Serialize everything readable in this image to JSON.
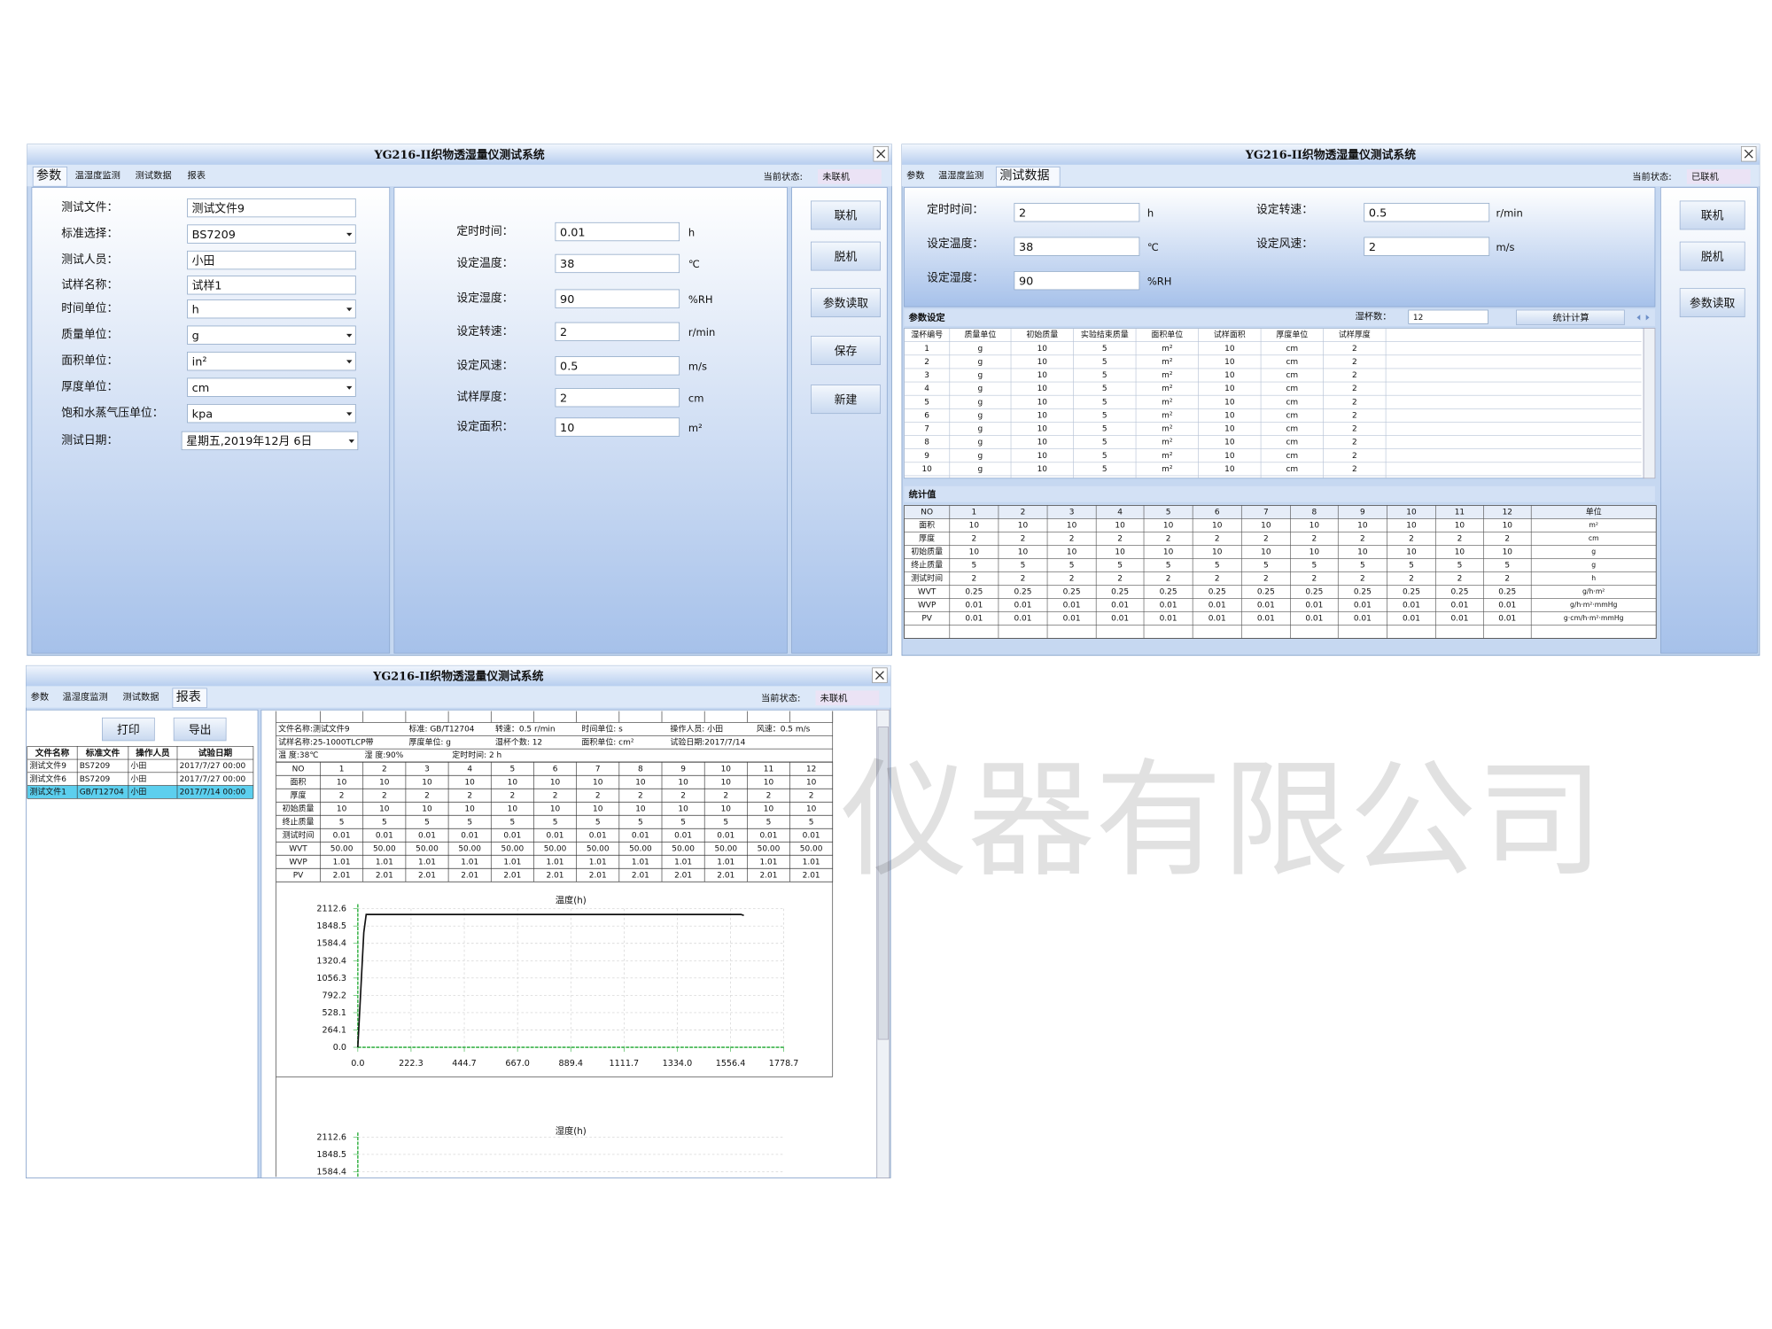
{
  "watermark": "仪器有限公司",
  "windows": [
    {
      "title": "YG216-II织物透湿量仪测试系统",
      "tabs": [
        "参数",
        "温湿度监测",
        "测试数据",
        "报表"
      ],
      "active_tab": 0,
      "status_label": "当前状态:",
      "status": "未联机",
      "form": [
        {
          "label": "测试文件：",
          "value": "测试文件9",
          "dropdown": false
        },
        {
          "label": "标准选择：",
          "value": "BS7209",
          "dropdown": true
        },
        {
          "label": "测试人员：",
          "value": "小田",
          "dropdown": false
        },
        {
          "label": "试样名称：",
          "value": "试样1",
          "dropdown": false
        },
        {
          "label": "时间单位：",
          "value": "h",
          "dropdown": true
        },
        {
          "label": "质量单位：",
          "value": "g",
          "dropdown": true
        },
        {
          "label": "面积单位：",
          "value": "in²",
          "dropdown": true
        },
        {
          "label": "厚度单位：",
          "value": "cm",
          "dropdown": true
        },
        {
          "label": "饱和水蒸气压单位：",
          "value": "kpa",
          "dropdown": true
        },
        {
          "label": "测试日期：",
          "value": "星期五,2019年12月  6日",
          "dropdown": true
        }
      ],
      "settings": [
        {
          "label": "定时时间：",
          "value": "0.01",
          "unit": "h"
        },
        {
          "label": "设定温度：",
          "value": "38",
          "unit": "℃"
        },
        {
          "label": "设定湿度：",
          "value": "90",
          "unit": "%RH"
        },
        {
          "label": "设定转速：",
          "value": "2",
          "unit": "r/min"
        },
        {
          "label": "设定风速：",
          "value": "0.5",
          "unit": "m/s"
        },
        {
          "label": "试样厚度：",
          "value": "2",
          "unit": "cm"
        },
        {
          "label": "设定面积：",
          "value": "10",
          "unit": "m²"
        }
      ],
      "buttons": [
        "联机",
        "脱机",
        "参数读取",
        "保存",
        "新建"
      ]
    },
    {
      "title": "YG216-II织物透湿量仪测试系统",
      "tabs": [
        "参数",
        "温湿度监测",
        "测试数据"
      ],
      "active_tab": 2,
      "status_label": "当前状态:",
      "status": "已联机",
      "settings": [
        {
          "label": "定时时间：",
          "value": "2",
          "unit": "h"
        },
        {
          "label": "设定转速：",
          "value": "0.5",
          "unit": "r/min"
        },
        {
          "label": "设定温度：",
          "value": "38",
          "unit": "℃"
        },
        {
          "label": "设定风速：",
          "value": "2",
          "unit": "m/s"
        },
        {
          "label": "设定湿度：",
          "value": "90",
          "unit": "%RH"
        }
      ],
      "buttons": [
        "联机",
        "脱机",
        "参数读取"
      ],
      "param_section": {
        "title": "参数设定",
        "cups_label": "湿杯数：",
        "cups": "12",
        "calc_button": "统计计算",
        "columns": [
          "湿杯编号",
          "质量单位",
          "初始质量",
          "实验结束质量",
          "面积单位",
          "试样面积",
          "厚度单位",
          "试样厚度"
        ],
        "rows": [
          [
            1,
            "g",
            10,
            5,
            "m²",
            10,
            "cm",
            2
          ],
          [
            2,
            "g",
            10,
            5,
            "m²",
            10,
            "cm",
            2
          ],
          [
            3,
            "g",
            10,
            5,
            "m²",
            10,
            "cm",
            2
          ],
          [
            4,
            "g",
            10,
            5,
            "m²",
            10,
            "cm",
            2
          ],
          [
            5,
            "g",
            10,
            5,
            "m²",
            10,
            "cm",
            2
          ],
          [
            6,
            "g",
            10,
            5,
            "m²",
            10,
            "cm",
            2
          ],
          [
            7,
            "g",
            10,
            5,
            "m²",
            10,
            "cm",
            2
          ],
          [
            8,
            "g",
            10,
            5,
            "m²",
            10,
            "cm",
            2
          ],
          [
            9,
            "g",
            10,
            5,
            "m²",
            10,
            "cm",
            2
          ],
          [
            10,
            "g",
            10,
            5,
            "m²",
            10,
            "cm",
            2
          ]
        ]
      },
      "stats_section": {
        "title": "统计值",
        "columns": [
          "NO",
          1,
          2,
          3,
          4,
          5,
          6,
          7,
          8,
          9,
          10,
          11,
          12,
          "单位"
        ],
        "rows": [
          [
            "面积",
            10,
            10,
            10,
            10,
            10,
            10,
            10,
            10,
            10,
            10,
            10,
            10,
            "m²"
          ],
          [
            "厚度",
            2,
            2,
            2,
            2,
            2,
            2,
            2,
            2,
            2,
            2,
            2,
            2,
            "cm"
          ],
          [
            "初始质量",
            10,
            10,
            10,
            10,
            10,
            10,
            10,
            10,
            10,
            10,
            10,
            10,
            "g"
          ],
          [
            "终止质量",
            5,
            5,
            5,
            5,
            5,
            5,
            5,
            5,
            5,
            5,
            5,
            5,
            "g"
          ],
          [
            "测试时间",
            2,
            2,
            2,
            2,
            2,
            2,
            2,
            2,
            2,
            2,
            2,
            2,
            "h"
          ],
          [
            "WVT",
            "0.25",
            "0.25",
            "0.25",
            "0.25",
            "0.25",
            "0.25",
            "0.25",
            "0.25",
            "0.25",
            "0.25",
            "0.25",
            "0.25",
            "g/h·m²"
          ],
          [
            "WVP",
            "0.01",
            "0.01",
            "0.01",
            "0.01",
            "0.01",
            "0.01",
            "0.01",
            "0.01",
            "0.01",
            "0.01",
            "0.01",
            "0.01",
            "g/h·m²·mmHg"
          ],
          [
            "PV",
            "0.01",
            "0.01",
            "0.01",
            "0.01",
            "0.01",
            "0.01",
            "0.01",
            "0.01",
            "0.01",
            "0.01",
            "0.01",
            "0.01",
            "g·cm/h·m²·mmHg"
          ]
        ]
      }
    },
    {
      "title": "YG216-II织物透湿量仪测试系统",
      "tabs": [
        "参数",
        "温湿度监测",
        "测试数据",
        "报表"
      ],
      "active_tab": 3,
      "status_label": "当前状态:",
      "status": "未联机",
      "buttons": [
        "打印",
        "导出"
      ],
      "files": {
        "columns": [
          "文件名称",
          "标准文件",
          "操作人员",
          "试验日期"
        ],
        "selected": 2,
        "rows": [
          [
            "测试文件9",
            "BS7209",
            "小田",
            "2017/7/27 00:00"
          ],
          [
            "测试文件6",
            "BS7209",
            "小田",
            "2017/7/27 00:00"
          ],
          [
            "测试文件1",
            "GB/T12704",
            "小田",
            "2017/7/14 00:00"
          ]
        ]
      },
      "info": [
        [
          "文件名称:测试文件9",
          "标准: GB/T12704",
          "转速：0.5 r/min",
          "时间单位: s",
          "操作人员: 小田",
          "风速：0.5 m/s"
        ],
        [
          "试样名称:25-1000TLCP带",
          "厚度单位: g",
          "湿杯个数: 12",
          "面积单位: cm²",
          "试验日期:2017/7/14"
        ],
        [
          "温  度:38℃",
          "湿  度:90%",
          "定时时间: 2 h"
        ]
      ],
      "data_table": [
        [
          "NO",
          1,
          2,
          3,
          4,
          5,
          6,
          7,
          8,
          9,
          10,
          11,
          12
        ],
        [
          "面积",
          10,
          10,
          10,
          10,
          10,
          10,
          10,
          10,
          10,
          10,
          10,
          10
        ],
        [
          "厚度",
          2,
          2,
          2,
          2,
          2,
          2,
          2,
          2,
          2,
          2,
          2,
          2
        ],
        [
          "初始质量",
          10,
          10,
          10,
          10,
          10,
          10,
          10,
          10,
          10,
          10,
          10,
          10
        ],
        [
          "终止质量",
          5,
          5,
          5,
          5,
          5,
          5,
          5,
          5,
          5,
          5,
          5,
          5
        ],
        [
          "测试时间",
          "0.01",
          "0.01",
          "0.01",
          "0.01",
          "0.01",
          "0.01",
          "0.01",
          "0.01",
          "0.01",
          "0.01",
          "0.01",
          "0.01"
        ],
        [
          "WVT",
          "50.00",
          "50.00",
          "50.00",
          "50.00",
          "50.00",
          "50.00",
          "50.00",
          "50.00",
          "50.00",
          "50.00",
          "50.00",
          "50.00"
        ],
        [
          "WVP",
          "1.01",
          "1.01",
          "1.01",
          "1.01",
          "1.01",
          "1.01",
          "1.01",
          "1.01",
          "1.01",
          "1.01",
          "1.01",
          "1.01"
        ],
        [
          "PV",
          "2.01",
          "2.01",
          "2.01",
          "2.01",
          "2.01",
          "2.01",
          "2.01",
          "2.01",
          "2.01",
          "2.01",
          "2.01",
          "2.01"
        ]
      ],
      "charts": [
        {
          "type": "line",
          "title": "温度(h)",
          "xlim": [
            0,
            1778.7
          ],
          "ylim": [
            0,
            2112.6
          ],
          "xticks": [
            {
              "value": 0,
              "label": "0.0"
            },
            222.3,
            444.7,
            {
              "value": 667,
              "label": "667.0"
            },
            889.4,
            1111.7,
            {
              "value": 1334,
              "label": "1334.0"
            },
            1556.4,
            1778.7
          ],
          "yticks": [
            {
              "value": 0,
              "label": "0.0"
            },
            264.1,
            528.1,
            792.2,
            1056.3,
            1320.4,
            1584.4,
            1848.5,
            2112.6
          ],
          "grid": true,
          "series": [
            {
              "color": "#111111",
              "x": [
                0,
                10,
                25,
                35,
                1600,
                1612
              ],
              "y": [
                0,
                700,
                1750,
                2025,
                2025,
                2010
              ]
            }
          ]
        },
        {
          "type": "line",
          "title": "湿度(h)",
          "ylim": [
            0,
            2112.6
          ],
          "yticks": [
            1584.4,
            1848.5,
            2112.6
          ],
          "grid": true
        }
      ]
    }
  ]
}
